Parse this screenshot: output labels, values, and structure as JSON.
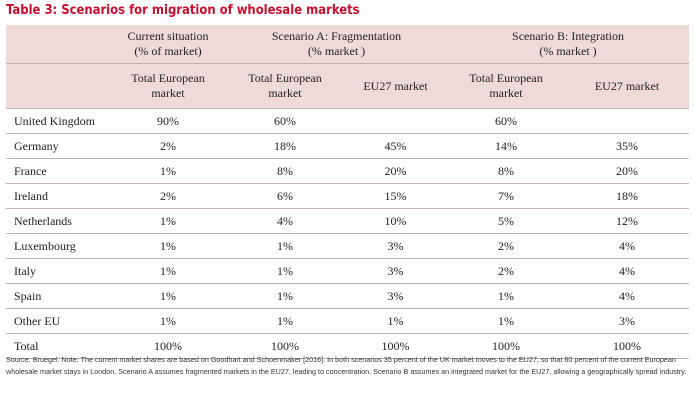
{
  "title": "Table 3: Scenarios for migration of wholesale markets",
  "group_headers": {
    "current": [
      "Current situation",
      "(% of market)"
    ],
    "scenario_a": [
      "Scenario A: Fragmentation",
      "(% market )"
    ],
    "scenario_b": [
      "Scenario B: Integration",
      "(% market )"
    ]
  },
  "sub_headers": {
    "current_total": [
      "Total European",
      "market"
    ],
    "a_total": [
      "Total European",
      "market"
    ],
    "a_eu27": "EU27 market",
    "b_total": [
      "Total European",
      "market"
    ],
    "b_eu27": "EU27 market"
  },
  "rows": [
    {
      "name": "United Kingdom",
      "cur": "90%",
      "a_total": "60%",
      "a_eu27": "",
      "b_total": "60%",
      "b_eu27": ""
    },
    {
      "name": "Germany",
      "cur": "2%",
      "a_total": "18%",
      "a_eu27": "45%",
      "b_total": "14%",
      "b_eu27": "35%"
    },
    {
      "name": "France",
      "cur": "1%",
      "a_total": "8%",
      "a_eu27": "20%",
      "b_total": "8%",
      "b_eu27": "20%"
    },
    {
      "name": "Ireland",
      "cur": "2%",
      "a_total": "6%",
      "a_eu27": "15%",
      "b_total": "7%",
      "b_eu27": "18%"
    },
    {
      "name": "Netherlands",
      "cur": "1%",
      "a_total": "4%",
      "a_eu27": "10%",
      "b_total": "5%",
      "b_eu27": "12%"
    },
    {
      "name": "Luxembourg",
      "cur": "1%",
      "a_total": "1%",
      "a_eu27": "3%",
      "b_total": "2%",
      "b_eu27": "4%"
    },
    {
      "name": "Italy",
      "cur": "1%",
      "a_total": "1%",
      "a_eu27": "3%",
      "b_total": "2%",
      "b_eu27": "4%"
    },
    {
      "name": "Spain",
      "cur": "1%",
      "a_total": "1%",
      "a_eu27": "3%",
      "b_total": "1%",
      "b_eu27": "4%"
    },
    {
      "name": "Other EU",
      "cur": "1%",
      "a_total": "1%",
      "a_eu27": "1%",
      "b_total": "1%",
      "b_eu27": "3%"
    }
  ],
  "total_row": {
    "name": "Total",
    "cur": "100%",
    "a_total": "100%",
    "a_eu27": "100%",
    "b_total": "100%",
    "b_eu27": "100%"
  },
  "footnote": "Source: Bruegel. Note: The current market shares are based on Goodhart and Schoenmaker [2016]. In both scenarios 35 percent of the UK market moves to the EU27, so that 60 percent of the current European wholesale market stays in London. Scenario A assumes fragmented markets in the EU27, leading to concentration. Scenario B assumes an integrated market for the EU27, allowing a geographically spread industry.",
  "colors": {
    "title": "#c8102e",
    "header_bg": "#efdada",
    "rule": "#c7b2b2"
  }
}
